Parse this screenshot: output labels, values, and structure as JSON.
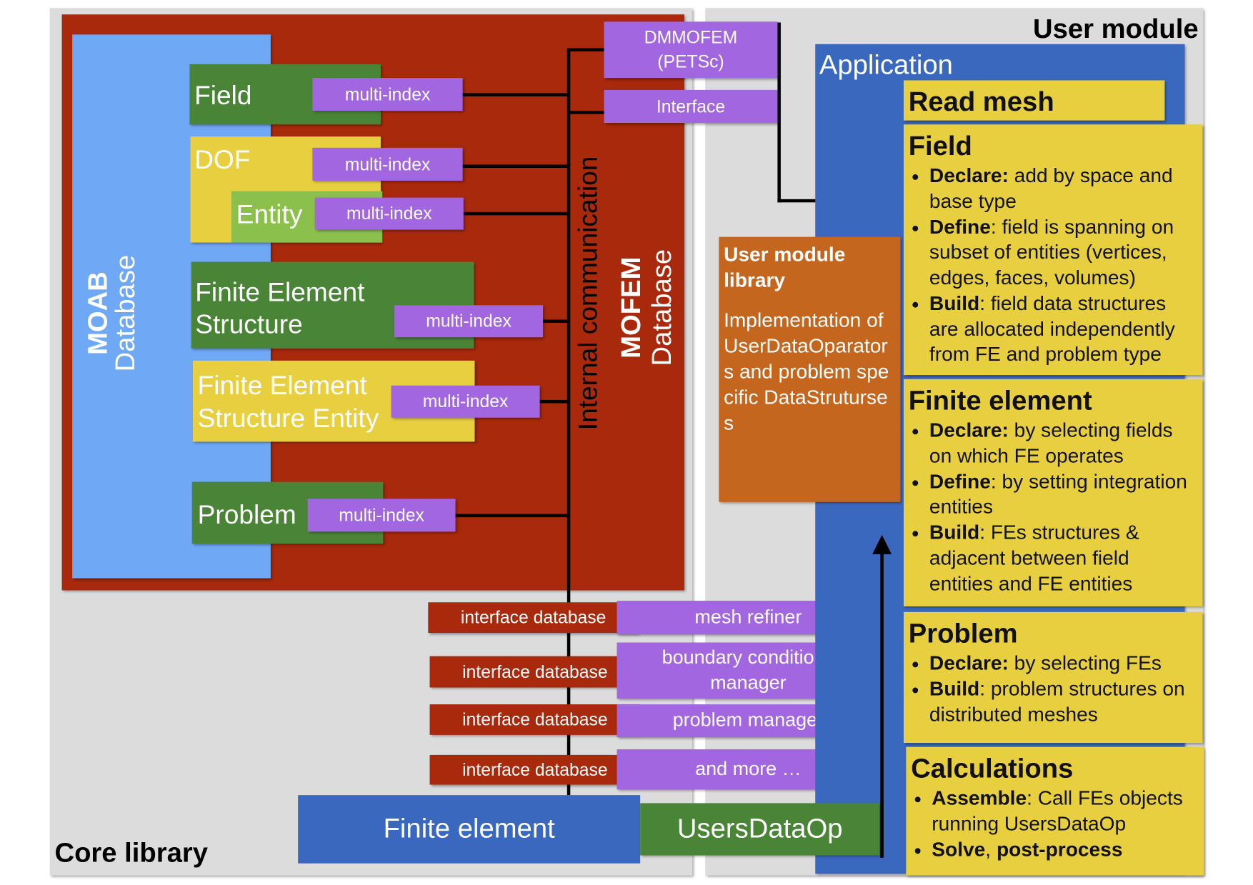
{
  "core": {
    "label": "Core library",
    "moab": {
      "title": "MOAB",
      "subtitle": "Database"
    },
    "mofem": {
      "title": "MOFEM",
      "subtitle": "Database"
    },
    "internal_communication": "Internal communication",
    "blocks": {
      "field": "Field",
      "dof": "DOF",
      "entity": "Entity",
      "fe_structure": [
        "Finite Element",
        "Structure"
      ],
      "fe_structure_entity": [
        "Finite Element",
        "Structure Entity"
      ],
      "problem": "Problem"
    },
    "multi_index": "multi-index",
    "dmmofem": [
      "DMMOFEM",
      "(PETSc)"
    ],
    "interface": "Interface",
    "interface_database": "interface database",
    "managers": [
      "mesh refiner",
      "boundary conditions manager",
      "problem manager",
      "and more …"
    ],
    "finite_element": "Finite element",
    "users_data_op": "UsersDataOp"
  },
  "user": {
    "label": "User module",
    "application": "Application",
    "read_mesh": "Read mesh",
    "library": {
      "title": "User module library",
      "body": "Implementation of UserDataOparators and problem specific DataStruturses"
    },
    "sections": [
      {
        "title": "Field",
        "items": [
          {
            "bold": "Declare:",
            "text": " add by space and base type"
          },
          {
            "bold": "Define",
            "text": ": field is spanning on subset of entities (vertices, edges, faces, volumes)"
          },
          {
            "bold": "Build",
            "text": ": field data structures are allocated independently from FE and problem type"
          }
        ]
      },
      {
        "title": "Finite element",
        "items": [
          {
            "bold": "Declare:",
            "text": " by selecting fields on which FE operates"
          },
          {
            "bold": "Define",
            "text": ": by setting integration entities"
          },
          {
            "bold": "Build",
            "text": ": FEs structures & adjacent between field entities and FE entities"
          }
        ]
      },
      {
        "title": "Problem",
        "items": [
          {
            "bold": "Declare:",
            "text": " by selecting FEs"
          },
          {
            "bold": "Build",
            "text": ": problem structures on distributed meshes"
          }
        ]
      },
      {
        "title": "Calculations",
        "items": [
          {
            "bold": "Assemble",
            "text": ": Call FEs objects running UsersDataOp"
          },
          {
            "bold": "Solve",
            "text": ", "
          },
          {
            "bold": "post-process",
            "text": ""
          }
        ]
      }
    ]
  },
  "colors": {
    "mofem_red": "#a8290c",
    "moab_blue": "#6fa8f5",
    "app_blue": "#3a68bf",
    "green": "#4a8437",
    "yellow": "#e8cf3f",
    "purple": "#a166e0",
    "orange": "#c5661f",
    "panel_gray": "#dcdcdc"
  }
}
